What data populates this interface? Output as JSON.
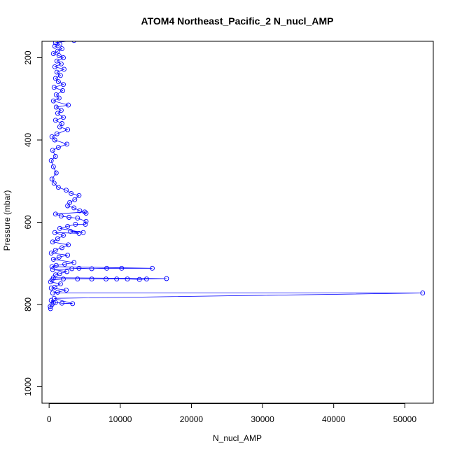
{
  "chart_data": {
    "type": "scatter",
    "title": "ATOM4 Northeast_Pacific_2 N_nucl_AMP",
    "xlabel": "N_nucl_AMP",
    "ylabel": "Pressure (mbar)",
    "xlim": [
      -1000,
      54000
    ],
    "ylim": [
      1040,
      160
    ],
    "y_reversed": true,
    "x_ticks": [
      0,
      10000,
      20000,
      30000,
      40000,
      50000
    ],
    "x_tick_labels": [
      "0",
      "10000",
      "20000",
      "30000",
      "40000",
      "50000"
    ],
    "y_ticks": [
      200,
      400,
      600,
      800,
      1000
    ],
    "y_tick_labels": [
      "200",
      "400",
      "600",
      "800",
      "1000"
    ],
    "grid": false,
    "marker": "open-circle",
    "connected": true,
    "color": "#0000ff",
    "series": [
      {
        "points": [
          [
            200,
            810
          ],
          [
            150,
            805
          ],
          [
            400,
            800
          ],
          [
            600,
            795
          ],
          [
            300,
            790
          ],
          [
            900,
            795
          ],
          [
            1800,
            797
          ],
          [
            3300,
            798
          ],
          [
            700,
            785
          ],
          [
            52500,
            772
          ],
          [
            500,
            772
          ],
          [
            1200,
            770
          ],
          [
            2400,
            765
          ],
          [
            300,
            760
          ],
          [
            800,
            758
          ],
          [
            1600,
            750
          ],
          [
            200,
            745
          ],
          [
            400,
            740
          ],
          [
            2000,
            738
          ],
          [
            4000,
            738
          ],
          [
            6000,
            738
          ],
          [
            8000,
            738
          ],
          [
            9500,
            738
          ],
          [
            11000,
            738
          ],
          [
            12700,
            739
          ],
          [
            13700,
            738
          ],
          [
            16500,
            737
          ],
          [
            600,
            735
          ],
          [
            900,
            728
          ],
          [
            1500,
            725
          ],
          [
            2500,
            720
          ],
          [
            500,
            715
          ],
          [
            3200,
            713
          ],
          [
            4200,
            712
          ],
          [
            6000,
            713
          ],
          [
            8100,
            712
          ],
          [
            10200,
            712
          ],
          [
            14500,
            712
          ],
          [
            400,
            708
          ],
          [
            1000,
            705
          ],
          [
            2200,
            702
          ],
          [
            3500,
            698
          ],
          [
            600,
            690
          ],
          [
            1400,
            685
          ],
          [
            2600,
            680
          ],
          [
            300,
            675
          ],
          [
            900,
            668
          ],
          [
            1800,
            662
          ],
          [
            2700,
            655
          ],
          [
            500,
            648
          ],
          [
            1200,
            640
          ],
          [
            2000,
            632
          ],
          [
            800,
            625
          ],
          [
            4200,
            627
          ],
          [
            3000,
            622
          ],
          [
            4800,
            625
          ],
          [
            1500,
            615
          ],
          [
            2600,
            610
          ],
          [
            3700,
            605
          ],
          [
            5100,
            605
          ],
          [
            5200,
            598
          ],
          [
            4000,
            590
          ],
          [
            2800,
            588
          ],
          [
            1700,
            585
          ],
          [
            900,
            580
          ],
          [
            5000,
            575
          ],
          [
            5200,
            578
          ],
          [
            4300,
            572
          ],
          [
            3500,
            565
          ],
          [
            2600,
            560
          ],
          [
            2900,
            552
          ],
          [
            3600,
            545
          ],
          [
            4200,
            535
          ],
          [
            3100,
            530
          ],
          [
            2400,
            522
          ],
          [
            1300,
            515
          ],
          [
            700,
            505
          ],
          [
            400,
            495
          ],
          [
            1000,
            480
          ],
          [
            600,
            465
          ],
          [
            300,
            450
          ],
          [
            900,
            440
          ],
          [
            500,
            425
          ],
          [
            1300,
            418
          ],
          [
            2500,
            410
          ],
          [
            800,
            400
          ],
          [
            400,
            392
          ],
          [
            1100,
            385
          ],
          [
            2600,
            375
          ],
          [
            1500,
            368
          ],
          [
            1800,
            360
          ],
          [
            900,
            352
          ],
          [
            2000,
            345
          ],
          [
            1200,
            335
          ],
          [
            1700,
            328
          ],
          [
            1000,
            320
          ],
          [
            2700,
            315
          ],
          [
            600,
            305
          ],
          [
            1400,
            298
          ],
          [
            1000,
            290
          ],
          [
            1900,
            280
          ],
          [
            700,
            272
          ],
          [
            2000,
            265
          ],
          [
            1300,
            258
          ],
          [
            900,
            250
          ],
          [
            1600,
            243
          ],
          [
            1100,
            235
          ],
          [
            2100,
            228
          ],
          [
            800,
            222
          ],
          [
            1700,
            215
          ],
          [
            1100,
            208
          ],
          [
            2000,
            200
          ],
          [
            1400,
            195
          ],
          [
            600,
            190
          ],
          [
            1200,
            184
          ],
          [
            1800,
            178
          ],
          [
            800,
            172
          ],
          [
            1500,
            167
          ],
          [
            900,
            163
          ],
          [
            3500,
            158
          ]
        ]
      }
    ]
  }
}
